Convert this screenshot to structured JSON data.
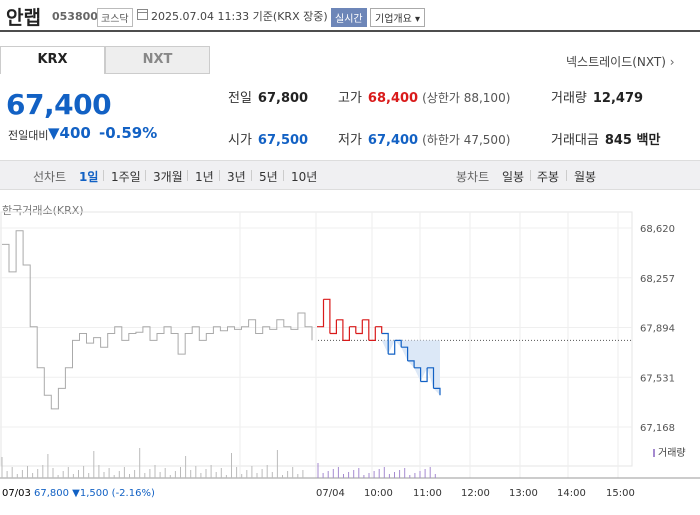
{
  "header": {
    "name": "안랩",
    "code": "053800",
    "market": "코스닥",
    "timestamp": "2025.07.04 11:33 기준(KRX 장중)",
    "realtime": "실시간",
    "overview": "기업개요 ▾"
  },
  "tabs": {
    "krx": "KRX",
    "nxt": "NXT"
  },
  "nxt_link": "넥스트레이드(NXT)",
  "quote": {
    "price": "67,400",
    "change_label": "전일대비",
    "change_value": "400",
    "change_pct": "-0.59%",
    "prev_label": "전일",
    "prev": "67,800",
    "high_label": "고가",
    "high": "68,400",
    "upper_limit": "(상한가 88,100)",
    "volume_label": "거래량",
    "volume": "12,479",
    "open_label": "시가",
    "open": "67,500",
    "low_label": "저가",
    "low": "67,400",
    "lower_limit": "(하한가 47,500)",
    "amount_label": "거래대금",
    "amount": "845 백만"
  },
  "period_bar": {
    "line_label": "선차트",
    "periods": [
      "1일",
      "1주일",
      "3개월",
      "1년",
      "3년",
      "5년",
      "10년"
    ],
    "selected": "1일",
    "candle_label": "봉차트",
    "candles": [
      "일봉",
      "주봉",
      "월봉"
    ]
  },
  "exchange_label": "한국거래소(KRX)",
  "volume_legend": "거래량",
  "colors": {
    "up": "#d91a1a",
    "down": "#1261c4",
    "prev": "#aaaaaa",
    "fill": "#dce8f7",
    "volume": "#a58ad0"
  },
  "chart_data": {
    "type": "line",
    "y_ticks": [
      "68,620",
      "68,257",
      "67,894",
      "67,531",
      "67,168"
    ],
    "ylim": [
      67168,
      68620
    ],
    "reference_price": 67800,
    "x_labels_bottom": [
      "07/03",
      "07/04",
      "10:00",
      "11:00",
      "12:00",
      "13:00",
      "14:00",
      "15:00"
    ],
    "prev_day_footer": {
      "date": "07/03",
      "close": "67,800",
      "change": "▼1,500",
      "pct": "(-2.16%)"
    },
    "series": [
      {
        "name": "07/03",
        "values": [
          68500,
          68300,
          68600,
          68350,
          67900,
          67600,
          67400,
          67300,
          67450,
          67600,
          67800,
          67850,
          67780,
          67820,
          67750,
          67850,
          67900,
          67800,
          67850,
          67860,
          67900,
          67800,
          67850,
          67900,
          67850,
          67700,
          67850,
          67900,
          67800,
          67850,
          67900,
          67870,
          67900,
          67880,
          67900,
          67950,
          67850,
          67900,
          67880,
          67950,
          67900,
          67880,
          68000,
          67900,
          67800
        ]
      },
      {
        "name": "07/04",
        "values": [
          67900,
          68100,
          67850,
          67950,
          67800,
          67900,
          67850,
          67950,
          67800,
          67900,
          67850,
          67700,
          67800,
          67750,
          67650,
          67600,
          67500,
          67600,
          67450,
          67400
        ]
      }
    ]
  }
}
